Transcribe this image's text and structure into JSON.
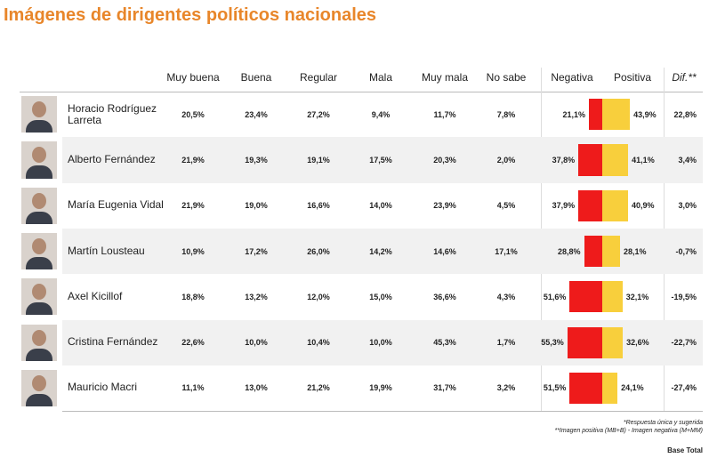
{
  "title": "Imágenes de dirigentes políticos nacionales",
  "header": [
    "Muy buena",
    "Buena",
    "Regular",
    "Mala",
    "Muy mala",
    "No sabe",
    "Negativa",
    "Positiva",
    "Dif.**"
  ],
  "bar_colors": {
    "negativa": "#ee1b1b",
    "positiva": "#f8cf3c"
  },
  "rows": [
    {
      "name": "Horacio Rodríguez Larreta",
      "cells": [
        "20,5%",
        "23,4%",
        "27,2%",
        "9,4%",
        "11,7%",
        "7,8%"
      ],
      "negativa": {
        "value": 21.1,
        "label": "21,1%"
      },
      "positiva": {
        "value": 43.9,
        "label": "43,9%"
      },
      "dif": "22,8%"
    },
    {
      "name": "Alberto Fernández",
      "cells": [
        "21,9%",
        "19,3%",
        "19,1%",
        "17,5%",
        "20,3%",
        "2,0%"
      ],
      "negativa": {
        "value": 37.8,
        "label": "37,8%"
      },
      "positiva": {
        "value": 41.1,
        "label": "41,1%"
      },
      "dif": "3,4%"
    },
    {
      "name": "María Eugenia Vidal",
      "cells": [
        "21,9%",
        "19,0%",
        "16,6%",
        "14,0%",
        "23,9%",
        "4,5%"
      ],
      "negativa": {
        "value": 37.9,
        "label": "37,9%"
      },
      "positiva": {
        "value": 40.9,
        "label": "40,9%"
      },
      "dif": "3,0%"
    },
    {
      "name": "Martín Lousteau",
      "cells": [
        "10,9%",
        "17,2%",
        "26,0%",
        "14,2%",
        "14,6%",
        "17,1%"
      ],
      "negativa": {
        "value": 28.8,
        "label": "28,8%"
      },
      "positiva": {
        "value": 28.1,
        "label": "28,1%"
      },
      "dif": "-0,7%"
    },
    {
      "name": "Axel Kicillof",
      "cells": [
        "18,8%",
        "13,2%",
        "12,0%",
        "15,0%",
        "36,6%",
        "4,3%"
      ],
      "negativa": {
        "value": 51.6,
        "label": "51,6%"
      },
      "positiva": {
        "value": 32.1,
        "label": "32,1%"
      },
      "dif": "-19,5%"
    },
    {
      "name": "Cristina Fernández",
      "cells": [
        "22,6%",
        "10,0%",
        "10,4%",
        "10,0%",
        "45,3%",
        "1,7%"
      ],
      "negativa": {
        "value": 55.3,
        "label": "55,3%"
      },
      "positiva": {
        "value": 32.6,
        "label": "32,6%"
      },
      "dif": "-22,7%"
    },
    {
      "name": "Mauricio Macri",
      "cells": [
        "11,1%",
        "13,0%",
        "21,2%",
        "19,9%",
        "31,7%",
        "3,2%"
      ],
      "negativa": {
        "value": 51.5,
        "label": "51,5%"
      },
      "positiva": {
        "value": 24.1,
        "label": "24,1%"
      },
      "dif": "-27,4%"
    }
  ],
  "notes": [
    "*Respuesta única y sugerida",
    "**Imagen positiva (MB+B) - Imagen negativa (M+MM)"
  ],
  "base": "Base Total"
}
